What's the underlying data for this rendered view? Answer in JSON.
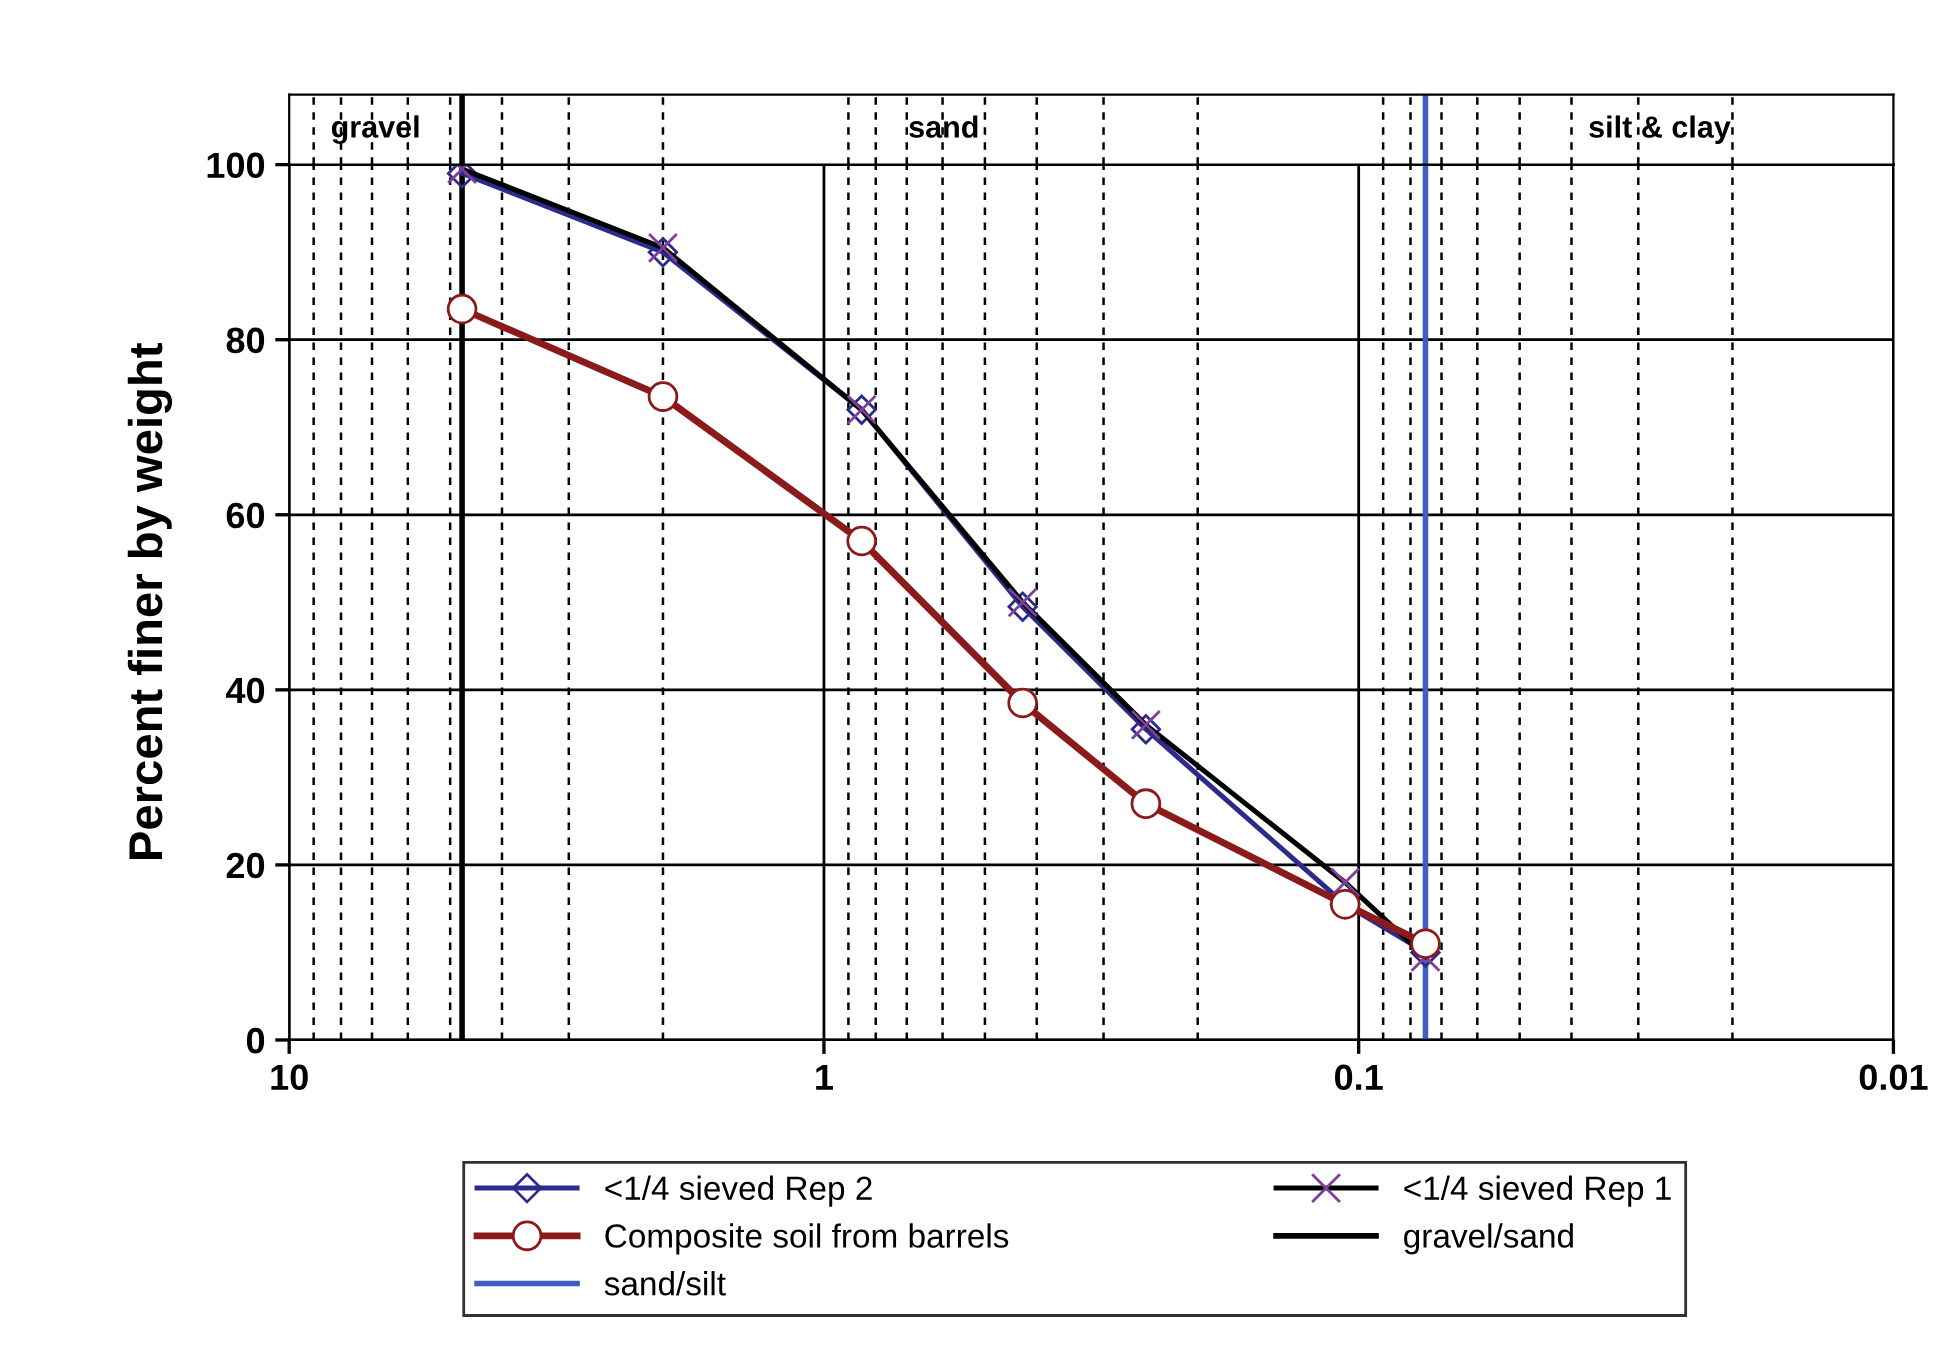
{
  "chart_data": {
    "type": "line",
    "ylabel": "Percent finer by weight",
    "x": [
      4.75,
      2.0,
      0.85,
      0.425,
      0.25,
      0.106,
      0.075
    ],
    "series": [
      {
        "name": "<1/4 sieved Rep 2",
        "color": "#2b2b8c",
        "marker": "diamond",
        "values": [
          99,
          90,
          72,
          49.5,
          35.5,
          15.5,
          10
        ]
      },
      {
        "name": "<1/4 sieved Rep 1",
        "color": "#000000",
        "marker": "cross",
        "values": [
          99.5,
          90.5,
          72,
          50,
          36,
          18,
          9.5
        ]
      },
      {
        "name": "Composite soil from barrels",
        "color": "#8b1a1a",
        "marker": "circle",
        "values": [
          83.5,
          73.5,
          57,
          38.5,
          27,
          15.5,
          11
        ]
      }
    ],
    "ref_lines": [
      {
        "axis": "x",
        "value": 4.75,
        "label": "gravel/sand",
        "color": "#000000"
      },
      {
        "axis": "x",
        "value": 0.075,
        "label": "sand/silt",
        "color": "#3f5fbf"
      }
    ],
    "annotations": [
      "gravel",
      "sand",
      "silt & clay"
    ],
    "log": "x",
    "xlim": [
      10,
      0.01
    ],
    "xticks": [
      10,
      1,
      0.1,
      0.01
    ],
    "ylim": [
      0,
      100
    ],
    "yticks": [
      0,
      20,
      40,
      60,
      80,
      100
    ],
    "grid": true,
    "legend": "bottom"
  }
}
